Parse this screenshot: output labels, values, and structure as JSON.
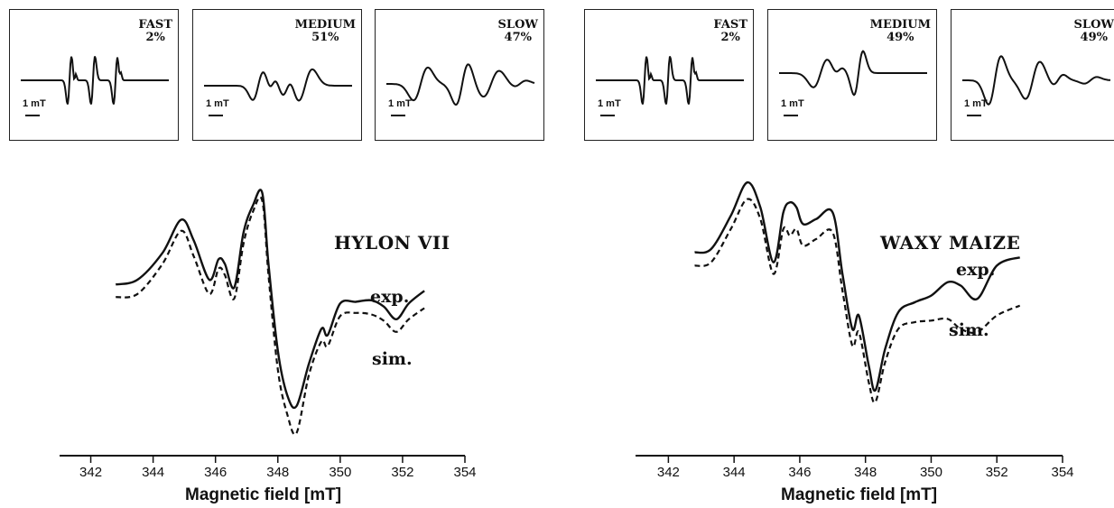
{
  "chart_data": [
    {
      "type": "line",
      "sample": "HYLON VII",
      "xlabel": "Magnetic field [mT]",
      "xlim": [
        341,
        354
      ],
      "xticks": [
        342,
        344,
        346,
        348,
        350,
        352,
        354
      ],
      "series": [
        {
          "name": "exp.",
          "style": "solid",
          "x": [
            342.8,
            343.5,
            344.3,
            344.9,
            345.3,
            345.8,
            346.1,
            346.3,
            346.6,
            346.9,
            347.2,
            347.5,
            347.7,
            348.0,
            348.3,
            348.6,
            349.0,
            349.4,
            349.6,
            350.0,
            350.5,
            351.0,
            351.4,
            351.8,
            352.2,
            352.7
          ],
          "y": [
            0.42,
            0.45,
            0.62,
            0.83,
            0.7,
            0.45,
            0.58,
            0.55,
            0.4,
            0.75,
            0.92,
            1.0,
            0.55,
            0.0,
            -0.28,
            -0.35,
            -0.08,
            0.14,
            0.1,
            0.3,
            0.31,
            0.32,
            0.28,
            0.2,
            0.3,
            0.38
          ]
        },
        {
          "name": "sim.",
          "style": "dashed",
          "x": [
            342.8,
            343.5,
            344.3,
            344.9,
            345.3,
            345.8,
            346.1,
            346.3,
            346.6,
            346.9,
            347.2,
            347.5,
            347.7,
            348.0,
            348.3,
            348.6,
            349.0,
            349.4,
            349.6,
            350.0,
            350.5,
            351.0,
            351.4,
            351.8,
            352.2,
            352.7
          ],
          "y": [
            0.34,
            0.36,
            0.55,
            0.76,
            0.6,
            0.36,
            0.52,
            0.48,
            0.33,
            0.68,
            0.88,
            0.95,
            0.48,
            -0.12,
            -0.4,
            -0.52,
            -0.15,
            0.06,
            0.03,
            0.22,
            0.24,
            0.23,
            0.19,
            0.12,
            0.2,
            0.27
          ]
        }
      ],
      "insets": [
        {
          "name": "FAST",
          "percent": "2%"
        },
        {
          "name": "MEDIUM",
          "percent": "51%"
        },
        {
          "name": "SLOW",
          "percent": "47%"
        }
      ]
    },
    {
      "type": "line",
      "sample": "WAXY MAIZE",
      "xlabel": "Magnetic field [mT]",
      "xlim": [
        341,
        354
      ],
      "xticks": [
        342,
        344,
        346,
        348,
        350,
        352,
        354
      ],
      "series": [
        {
          "name": "exp.",
          "style": "solid",
          "x": [
            342.8,
            343.3,
            343.9,
            344.4,
            344.8,
            345.2,
            345.5,
            345.7,
            345.9,
            346.1,
            346.5,
            347.0,
            347.3,
            347.6,
            347.8,
            348.1,
            348.3,
            348.6,
            349.0,
            349.5,
            350.0,
            350.5,
            350.9,
            351.4,
            352.0,
            352.7
          ],
          "y": [
            0.58,
            0.6,
            0.8,
            1.0,
            0.85,
            0.52,
            0.82,
            0.88,
            0.85,
            0.75,
            0.78,
            0.82,
            0.45,
            0.12,
            0.2,
            -0.1,
            -0.25,
            0.0,
            0.22,
            0.28,
            0.32,
            0.4,
            0.38,
            0.3,
            0.5,
            0.55
          ]
        },
        {
          "name": "sim.",
          "style": "dashed",
          "x": [
            342.8,
            343.3,
            343.9,
            344.4,
            344.8,
            345.2,
            345.5,
            345.7,
            345.9,
            346.1,
            346.5,
            347.0,
            347.3,
            347.6,
            347.8,
            348.1,
            348.3,
            348.6,
            349.0,
            349.5,
            350.0,
            350.5,
            350.9,
            351.4,
            352.0,
            352.7
          ],
          "y": [
            0.5,
            0.52,
            0.72,
            0.9,
            0.78,
            0.45,
            0.72,
            0.68,
            0.72,
            0.62,
            0.66,
            0.7,
            0.35,
            0.02,
            0.1,
            -0.2,
            -0.32,
            -0.08,
            0.12,
            0.16,
            0.17,
            0.18,
            0.12,
            0.1,
            0.2,
            0.26
          ]
        }
      ],
      "insets": [
        {
          "name": "FAST",
          "percent": "2%"
        },
        {
          "name": "MEDIUM",
          "percent": "49%"
        },
        {
          "name": "SLOW",
          "percent": "49%"
        }
      ]
    }
  ],
  "scale_bar": "1 mT",
  "labels": {
    "exp": "exp.",
    "sim": "sim."
  }
}
